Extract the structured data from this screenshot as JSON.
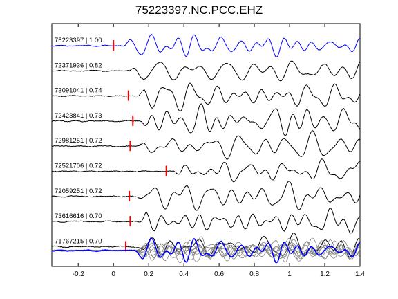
{
  "chart_data": {
    "type": "line",
    "title": "75223397.NC.PCC.EHZ",
    "xlabel": "",
    "ylabel": "",
    "xlim": [
      -0.35,
      1.4
    ],
    "x_ticks": [
      -0.2,
      0,
      0.2,
      0.4,
      0.6,
      0.8,
      1,
      1.2,
      1.4
    ],
    "x_tick_labels": [
      "-0.2",
      "0",
      "0.2",
      "0.4",
      "0.6",
      "0.8",
      "1",
      "1.2",
      "1.4"
    ],
    "grid": false,
    "reference_color": "#0000ff",
    "trace_color": "#000000",
    "stack_color": "#808080",
    "pick_color": "#ff0000",
    "traces": [
      {
        "label": "75223397 | 1.00",
        "pick": 0.0,
        "reference": true
      },
      {
        "label": "72371936 | 0.82",
        "pick": null,
        "reference": false
      },
      {
        "label": "73091041 | 0.74",
        "pick": 0.085,
        "reference": false
      },
      {
        "label": "72423841 | 0.73",
        "pick": 0.11,
        "reference": false
      },
      {
        "label": "72981251 | 0.72",
        "pick": 0.095,
        "reference": false
      },
      {
        "label": "72521706 | 0.72",
        "pick": 0.3,
        "reference": false
      },
      {
        "label": "72059251 | 0.72",
        "pick": 0.09,
        "reference": false
      },
      {
        "label": "73616616 | 0.70",
        "pick": 0.095,
        "reference": false
      },
      {
        "label": "71767215 | 0.70",
        "pick": 0.07,
        "reference": false
      }
    ]
  }
}
